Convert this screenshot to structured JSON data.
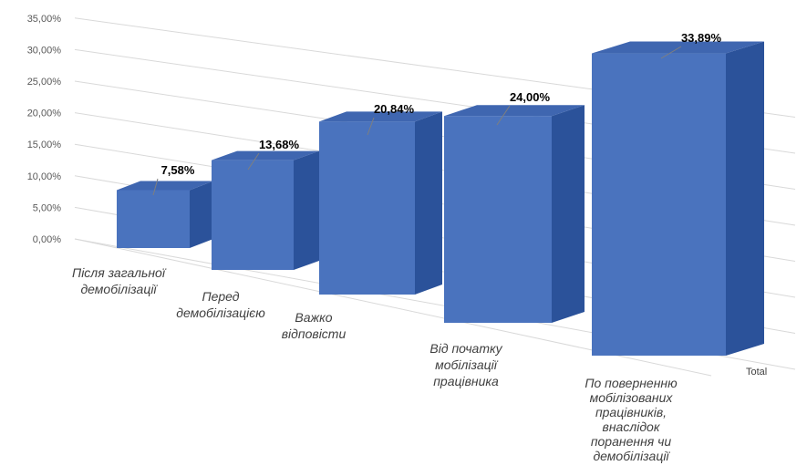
{
  "chart_data": {
    "type": "bar",
    "categories": [
      [
        "Після  загальної",
        "демобілізації"
      ],
      [
        "Перед",
        "демобілізацією"
      ],
      [
        "Важко",
        "відповісти"
      ],
      [
        "Від початку",
        "мобілізації",
        "працівника"
      ],
      [
        "По поверненню",
        "мобілізованих",
        "працівників,",
        "внаслідок",
        "поранення чи",
        "демобілізації"
      ]
    ],
    "series": [
      {
        "name": "Total",
        "values": [
          7.58,
          13.68,
          20.84,
          24.0,
          33.89
        ]
      }
    ],
    "data_labels": [
      "7,58%",
      "13,68%",
      "20,84%",
      "24,00%",
      "33,89%"
    ],
    "y_ticks": [
      "0,00%",
      "5,00%",
      "10,00%",
      "15,00%",
      "20,00%",
      "25,00%",
      "30,00%",
      "35,00%"
    ],
    "ylim": [
      0,
      35
    ],
    "grid": true,
    "legend_position": "right",
    "style": "3d-clustered-column",
    "colors": {
      "front": "#4A73BE",
      "side": "#2B529A",
      "top": "#3F66B0",
      "grid": "#D9D9D9",
      "leader": "#7F7F7F"
    }
  }
}
